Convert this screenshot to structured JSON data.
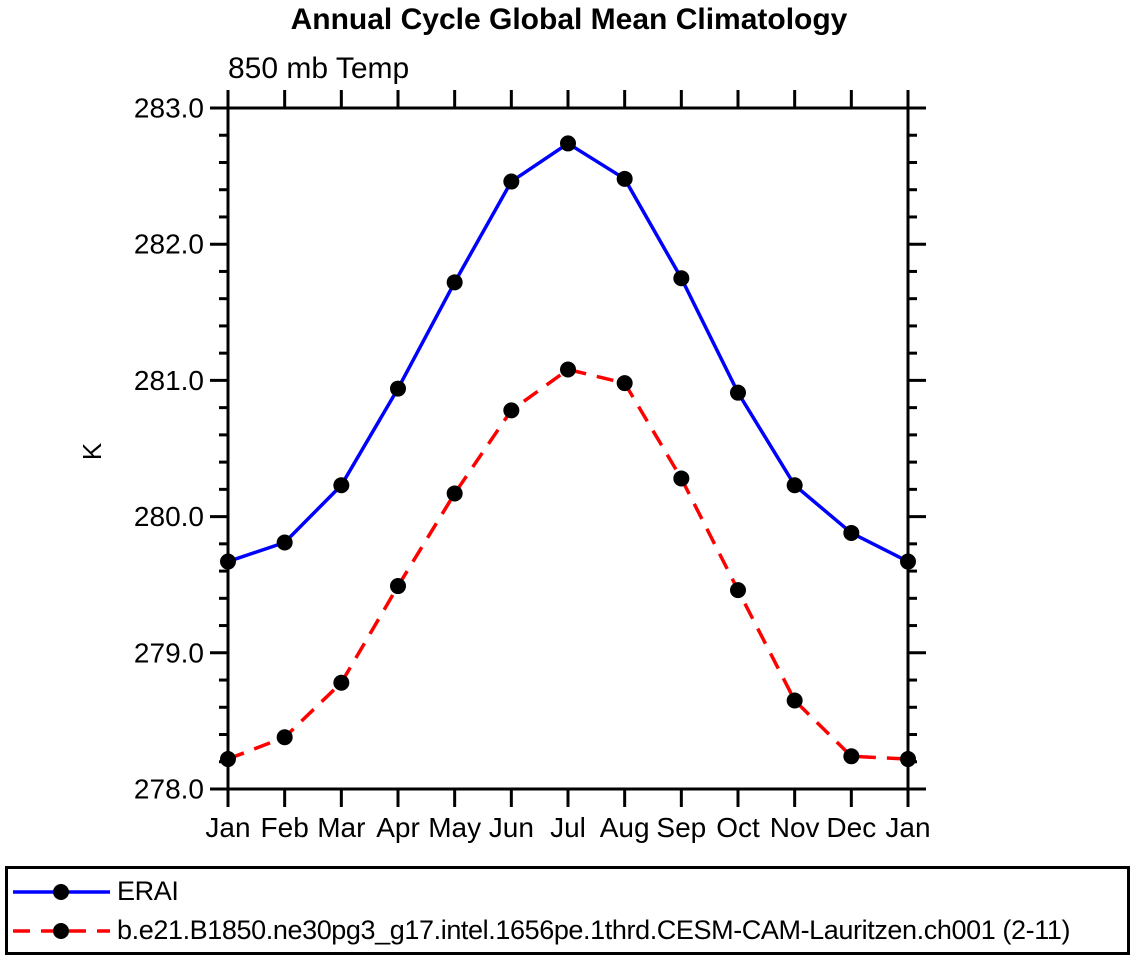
{
  "chart_data": {
    "type": "line",
    "title": "Annual Cycle Global Mean Climatology",
    "subtitle": "850 mb Temp",
    "ylabel": "K",
    "ylim": [
      278.0,
      283.0
    ],
    "ytick_labels": [
      "283.0",
      "282.0",
      "281.0",
      "280.0",
      "279.0",
      "278.0"
    ],
    "ytick_minor_step": 0.2,
    "grid": false,
    "legend_position": "bottom",
    "categories": [
      "Jan",
      "Feb",
      "Mar",
      "Apr",
      "May",
      "Jun",
      "Jul",
      "Aug",
      "Sep",
      "Oct",
      "Nov",
      "Dec",
      "Jan"
    ],
    "series": [
      {
        "name": "ERAI",
        "color": "#0000ff",
        "line_style": "solid",
        "marker": "filled-circle",
        "marker_color": "#000000",
        "values": [
          279.67,
          279.81,
          280.23,
          280.94,
          281.72,
          282.46,
          282.74,
          282.48,
          281.75,
          280.91,
          280.23,
          279.88,
          279.67
        ]
      },
      {
        "name": "b.e21.B1850.ne30pg3_g17.intel.1656pe.1thrd.CESM-CAM-Lauritzen.ch001 (2-11)",
        "color": "#ff0000",
        "line_style": "dashed",
        "marker": "filled-circle",
        "marker_color": "#000000",
        "values": [
          278.22,
          278.38,
          278.78,
          279.49,
          280.17,
          280.78,
          281.08,
          280.98,
          280.28,
          279.46,
          278.65,
          278.24,
          278.22
        ]
      }
    ]
  },
  "colors": {
    "background": "#ffffff",
    "axis": "#000000",
    "marker": "#000000"
  }
}
